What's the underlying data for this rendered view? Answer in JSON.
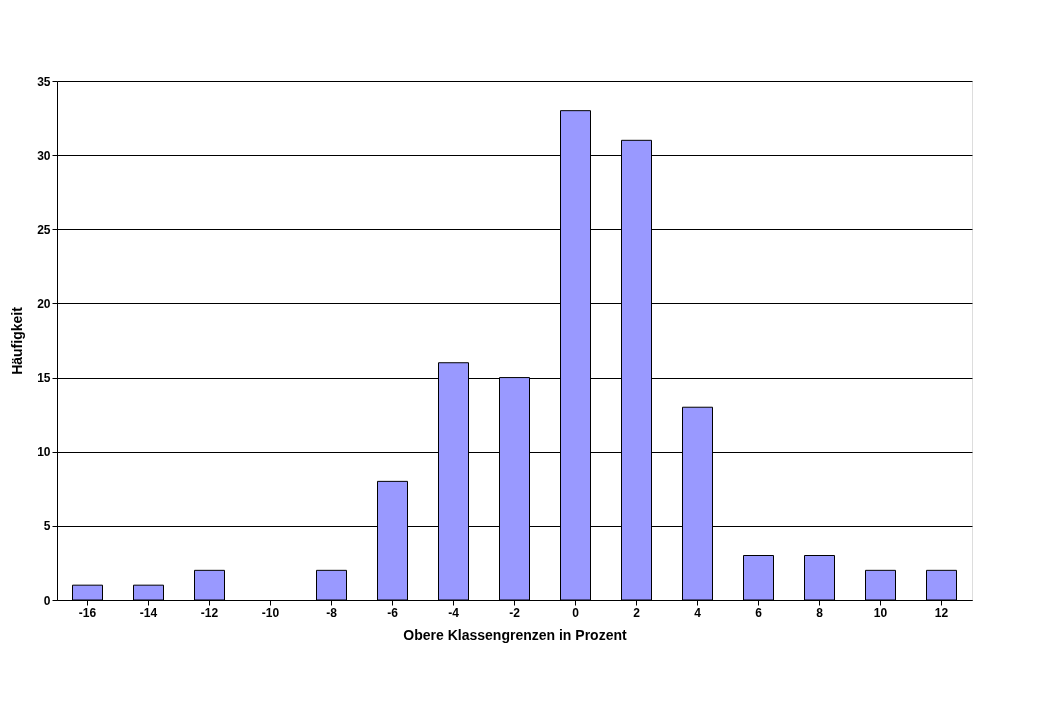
{
  "chart_data": {
    "type": "bar",
    "xlabel": "Obere Klassengrenzen in Prozent",
    "ylabel": "Häufigkeit",
    "categories": [
      "-16",
      "-14",
      "-12",
      "-10",
      "-8",
      "-6",
      "-4",
      "-2",
      "0",
      "2",
      "4",
      "6",
      "8",
      "10",
      "12"
    ],
    "values": [
      1,
      1,
      2,
      0,
      2,
      8,
      16,
      15,
      33,
      31,
      13,
      3,
      3,
      2,
      2
    ],
    "color": "#9999ff",
    "ylim": [
      0,
      35
    ],
    "yticks": [
      0,
      5,
      10,
      15,
      20,
      25,
      30,
      35
    ],
    "grid": "y"
  }
}
